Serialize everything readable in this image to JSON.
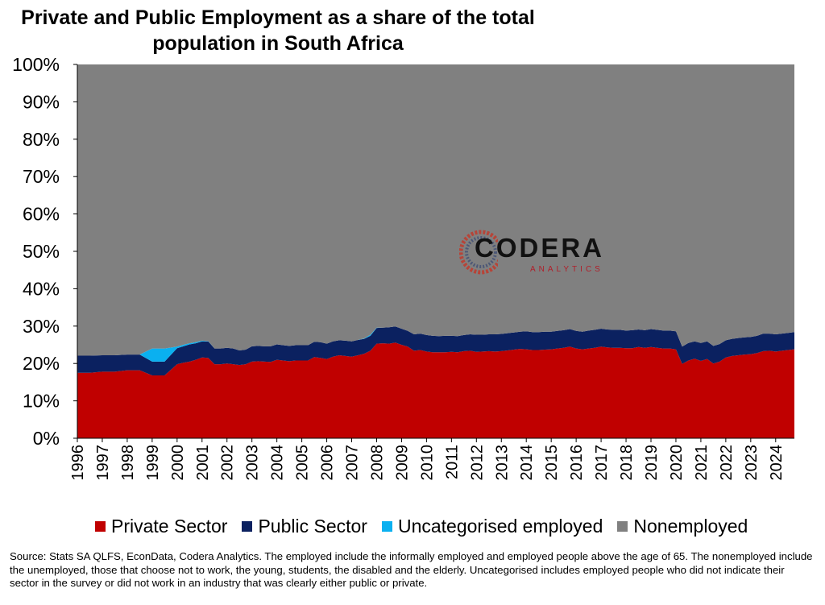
{
  "colors": {
    "private": "#c00000",
    "public": "#0b2160",
    "uncategorised": "#0ab0f0",
    "nonemployed": "#808080"
  },
  "title": {
    "line1": "Private and Public Employment as a share of the total",
    "line2": "population in South Africa"
  },
  "logo": {
    "main": "CODERA",
    "sub": "ANALYTICS"
  },
  "source": "Source: Stats SA QLFS, EconData, Codera Analytics. The employed include the informally employed and employed people above the age of 65. The nonemployed include the unemployed, those that choose not to work, the young, students, the disabled and the elderly. Uncategorised includes employed people who did not indicate their sector in the survey or did not work in an industry that was clearly either public or private.",
  "chart_data": {
    "type": "area",
    "stacked": true,
    "ylim": [
      0,
      100
    ],
    "y_ticks": [
      "0%",
      "10%",
      "20%",
      "30%",
      "40%",
      "50%",
      "60%",
      "70%",
      "80%",
      "90%",
      "100%"
    ],
    "x_ticks": [
      "1996",
      "1997",
      "1998",
      "1999",
      "2000",
      "2001",
      "2002",
      "2003",
      "2004",
      "2005",
      "2006",
      "2007",
      "2008",
      "2009",
      "2010",
      "2011",
      "2012",
      "2013",
      "2014",
      "2015",
      "2016",
      "2017",
      "2018",
      "2019",
      "2020",
      "2021",
      "2022",
      "2023",
      "2024"
    ],
    "grid": false,
    "legend_position": "bottom",
    "x": [
      1996.0,
      1996.5,
      1997.0,
      1997.5,
      1998.0,
      1998.5,
      1999.0,
      1999.5,
      2000.0,
      2000.25,
      2000.5,
      2000.75,
      2001.0,
      2001.25,
      2001.5,
      2001.75,
      2002.0,
      2002.25,
      2002.5,
      2002.75,
      2003.0,
      2003.25,
      2003.5,
      2003.75,
      2004.0,
      2004.25,
      2004.5,
      2004.75,
      2005.0,
      2005.25,
      2005.5,
      2005.75,
      2006.0,
      2006.25,
      2006.5,
      2006.75,
      2007.0,
      2007.25,
      2007.5,
      2007.75,
      2008.0,
      2008.25,
      2008.5,
      2008.75,
      2009.0,
      2009.25,
      2009.5,
      2009.75,
      2010.0,
      2010.25,
      2010.5,
      2010.75,
      2011.0,
      2011.25,
      2011.5,
      2011.75,
      2012.0,
      2012.25,
      2012.5,
      2012.75,
      2013.0,
      2013.25,
      2013.5,
      2013.75,
      2014.0,
      2014.25,
      2014.5,
      2014.75,
      2015.0,
      2015.25,
      2015.5,
      2015.75,
      2016.0,
      2016.25,
      2016.5,
      2016.75,
      2017.0,
      2017.25,
      2017.5,
      2017.75,
      2018.0,
      2018.25,
      2018.5,
      2018.75,
      2019.0,
      2019.25,
      2019.5,
      2019.75,
      2020.0,
      2020.25,
      2020.5,
      2020.75,
      2021.0,
      2021.25,
      2021.5,
      2021.75,
      2022.0,
      2022.25,
      2022.5,
      2022.75,
      2023.0,
      2023.25,
      2023.5,
      2023.75,
      2024.0,
      2024.25,
      2024.5,
      2024.75
    ],
    "series": [
      {
        "name": "Private Sector",
        "values": [
          17.5,
          17.5,
          17.8,
          17.8,
          18.2,
          18.2,
          16.8,
          16.8,
          19.8,
          20.2,
          20.5,
          21.0,
          21.6,
          21.5,
          19.8,
          19.8,
          20.0,
          19.8,
          19.6,
          19.8,
          20.5,
          20.6,
          20.5,
          20.4,
          21.0,
          20.8,
          20.6,
          20.8,
          20.8,
          20.8,
          21.7,
          21.5,
          21.2,
          21.8,
          22.2,
          22.0,
          21.8,
          22.2,
          22.6,
          23.4,
          25.3,
          25.4,
          25.3,
          25.6,
          25.0,
          24.5,
          23.4,
          23.6,
          23.2,
          23.0,
          23.0,
          23.0,
          23.1,
          23.0,
          23.3,
          23.4,
          23.1,
          23.2,
          23.3,
          23.2,
          23.3,
          23.5,
          23.7,
          23.9,
          23.8,
          23.6,
          23.6,
          23.7,
          23.8,
          24.0,
          24.2,
          24.5,
          24.0,
          23.8,
          24.0,
          24.2,
          24.5,
          24.3,
          24.2,
          24.2,
          24.1,
          24.1,
          24.4,
          24.2,
          24.4,
          24.2,
          24.0,
          24.0,
          23.8,
          19.9,
          20.8,
          21.3,
          20.7,
          21.2,
          20.0,
          20.5,
          21.6,
          22.0,
          22.2,
          22.4,
          22.5,
          22.8,
          23.3,
          23.4,
          23.2,
          23.4,
          23.6,
          23.8
        ]
      },
      {
        "name": "Public Sector",
        "values": [
          4.6,
          4.6,
          4.4,
          4.4,
          4.2,
          4.2,
          3.7,
          3.7,
          4.3,
          4.4,
          4.6,
          4.4,
          4.3,
          4.4,
          4.2,
          4.2,
          4.2,
          4.2,
          3.9,
          3.9,
          4.1,
          4.1,
          4.1,
          4.2,
          4.1,
          4.1,
          4.1,
          4.1,
          4.1,
          4.1,
          4.1,
          4.2,
          4.1,
          4.1,
          4.0,
          4.1,
          4.1,
          4.1,
          4.0,
          4.0,
          4.2,
          4.2,
          4.4,
          4.3,
          4.3,
          4.2,
          4.4,
          4.4,
          4.4,
          4.4,
          4.3,
          4.4,
          4.3,
          4.3,
          4.3,
          4.4,
          4.6,
          4.5,
          4.5,
          4.6,
          4.6,
          4.6,
          4.6,
          4.6,
          4.8,
          4.8,
          4.8,
          4.8,
          4.7,
          4.7,
          4.7,
          4.7,
          4.7,
          4.7,
          4.8,
          4.8,
          4.8,
          4.8,
          4.8,
          4.8,
          4.7,
          4.8,
          4.7,
          4.7,
          4.8,
          4.8,
          4.8,
          4.8,
          4.8,
          4.6,
          4.7,
          4.6,
          4.8,
          4.7,
          4.7,
          4.7,
          4.6,
          4.6,
          4.6,
          4.6,
          4.6,
          4.6,
          4.7,
          4.6,
          4.6,
          4.6,
          4.6,
          4.6
        ]
      },
      {
        "name": "Uncategorised employed",
        "values": [
          0,
          0,
          0,
          0,
          0,
          0,
          3.5,
          3.5,
          0.4,
          0.4,
          0.3,
          0.3,
          0.2,
          0.1,
          0,
          0,
          0,
          0,
          0,
          0,
          0,
          0,
          0,
          0,
          0,
          0,
          0,
          0,
          0,
          0,
          0,
          0,
          0,
          0,
          0,
          0,
          0,
          0,
          0.1,
          0.3,
          0.1,
          0,
          0,
          0,
          0,
          0,
          0,
          0,
          0,
          0,
          0,
          0,
          0,
          0,
          0,
          0,
          0,
          0,
          0,
          0,
          0,
          0,
          0,
          0,
          0,
          0,
          0,
          0,
          0,
          0,
          0,
          0,
          0,
          0,
          0,
          0,
          0,
          0,
          0,
          0,
          0,
          0,
          0,
          0,
          0,
          0,
          0,
          0,
          0,
          0,
          0,
          0,
          0,
          0,
          0,
          0,
          0,
          0,
          0,
          0,
          0,
          0,
          0,
          0,
          0,
          0,
          0,
          0
        ]
      },
      {
        "name": "Nonemployed",
        "values": [
          77.9,
          77.9,
          77.8,
          77.8,
          77.6,
          77.6,
          76.0,
          76.0,
          75.5,
          75.0,
          74.6,
          74.3,
          73.9,
          74.0,
          76.0,
          76.0,
          75.8,
          76.0,
          76.5,
          76.3,
          75.4,
          75.3,
          75.4,
          75.4,
          74.9,
          75.1,
          75.3,
          75.1,
          75.1,
          75.1,
          74.2,
          74.3,
          74.7,
          74.1,
          73.8,
          73.9,
          74.1,
          73.7,
          73.3,
          72.3,
          70.4,
          70.4,
          70.3,
          70.1,
          70.7,
          71.3,
          72.2,
          72.0,
          72.4,
          72.6,
          72.7,
          72.6,
          72.6,
          72.7,
          72.4,
          72.2,
          72.3,
          72.3,
          72.2,
          72.2,
          72.1,
          71.9,
          71.7,
          71.5,
          71.4,
          71.6,
          71.6,
          71.5,
          71.5,
          71.3,
          71.1,
          70.8,
          71.3,
          71.5,
          71.2,
          71.0,
          70.7,
          70.9,
          71.0,
          71.0,
          71.2,
          71.1,
          70.9,
          71.1,
          70.8,
          71.0,
          71.2,
          71.2,
          71.4,
          75.5,
          74.5,
          74.1,
          74.5,
          74.1,
          75.3,
          74.8,
          73.8,
          73.4,
          73.2,
          73.0,
          72.9,
          72.6,
          72.0,
          72.0,
          72.2,
          72.0,
          71.8,
          71.6
        ]
      }
    ]
  }
}
